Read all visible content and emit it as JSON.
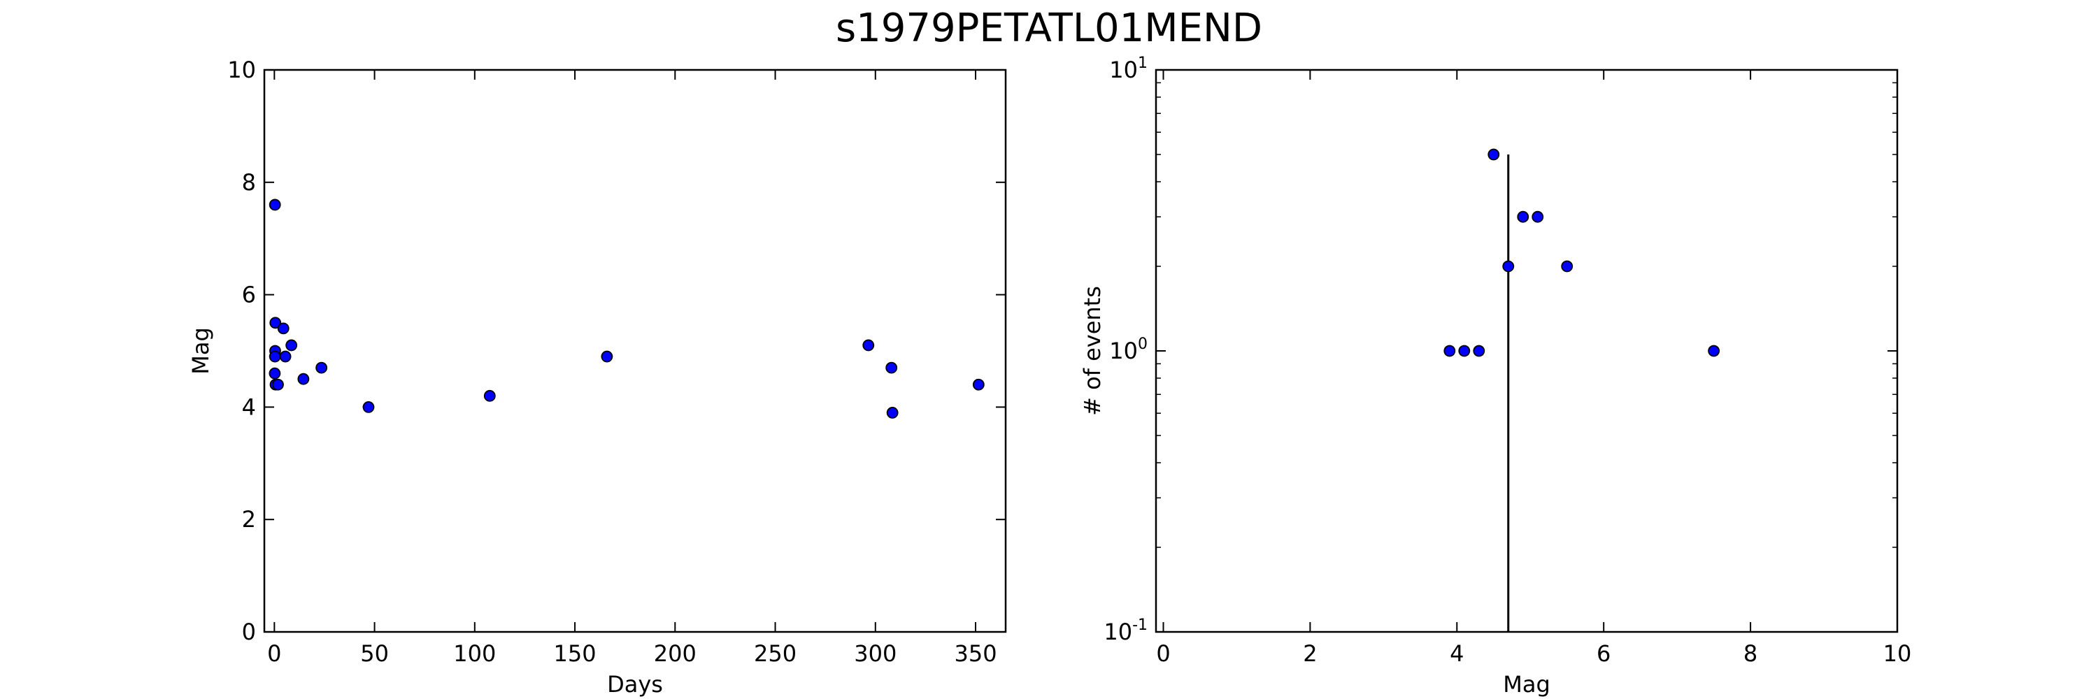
{
  "title": "s1979PETATL01MEND",
  "colors": {
    "marker_fill": "#0000ff",
    "marker_edge": "#000000",
    "axes": "#000000",
    "background": "#ffffff"
  },
  "chart_data": [
    {
      "type": "scatter",
      "xlabel": "Days",
      "ylabel": "Mag",
      "xlim": [
        -5,
        365
      ],
      "ylim": [
        0,
        10
      ],
      "xticks": [
        0,
        50,
        100,
        150,
        200,
        250,
        300,
        350
      ],
      "yticks": [
        0,
        2,
        4,
        6,
        8,
        10
      ],
      "xtick_labels": [
        "0",
        "50",
        "100",
        "150",
        "200",
        "250",
        "300",
        "350"
      ],
      "ytick_labels": [
        "0",
        "2",
        "4",
        "6",
        "8",
        "10"
      ],
      "grid": false,
      "points": [
        {
          "x": 0.3,
          "y": 7.6
        },
        {
          "x": 0.5,
          "y": 5.5
        },
        {
          "x": 0.4,
          "y": 5.0
        },
        {
          "x": 0.3,
          "y": 4.9
        },
        {
          "x": 0.2,
          "y": 4.6
        },
        {
          "x": 0.6,
          "y": 4.4
        },
        {
          "x": 1.8,
          "y": 4.4
        },
        {
          "x": 4.5,
          "y": 5.4
        },
        {
          "x": 5.5,
          "y": 4.9
        },
        {
          "x": 8.5,
          "y": 5.1
        },
        {
          "x": 14.5,
          "y": 4.5
        },
        {
          "x": 23.5,
          "y": 4.7
        },
        {
          "x": 47.0,
          "y": 4.0
        },
        {
          "x": 107.5,
          "y": 4.2
        },
        {
          "x": 166.0,
          "y": 4.9
        },
        {
          "x": 296.5,
          "y": 5.1
        },
        {
          "x": 308.0,
          "y": 4.7
        },
        {
          "x": 308.5,
          "y": 3.9
        },
        {
          "x": 351.5,
          "y": 4.4
        }
      ]
    },
    {
      "type": "scatter",
      "xlabel": "Mag",
      "ylabel": "# of events",
      "xlim": [
        -0.1,
        10
      ],
      "ylim": [
        0.1,
        10
      ],
      "yscale": "log",
      "xticks": [
        0,
        2,
        4,
        6,
        8,
        10
      ],
      "xtick_labels": [
        "0",
        "2",
        "4",
        "6",
        "8",
        "10"
      ],
      "yticks": [
        0.1,
        1,
        10
      ],
      "ytick_labels": [
        {
          "base": "10",
          "exp": "-1"
        },
        {
          "base": "10",
          "exp": "0"
        },
        {
          "base": "10",
          "exp": "1"
        }
      ],
      "grid": false,
      "points": [
        {
          "x": 3.9,
          "y": 1
        },
        {
          "x": 4.1,
          "y": 1
        },
        {
          "x": 4.3,
          "y": 1
        },
        {
          "x": 4.5,
          "y": 5
        },
        {
          "x": 4.7,
          "y": 2
        },
        {
          "x": 4.9,
          "y": 3
        },
        {
          "x": 5.1,
          "y": 3
        },
        {
          "x": 5.5,
          "y": 2
        },
        {
          "x": 7.5,
          "y": 1
        }
      ],
      "vertical_line": {
        "x": 4.7,
        "y_from": 0.1,
        "y_to": 5
      }
    }
  ]
}
